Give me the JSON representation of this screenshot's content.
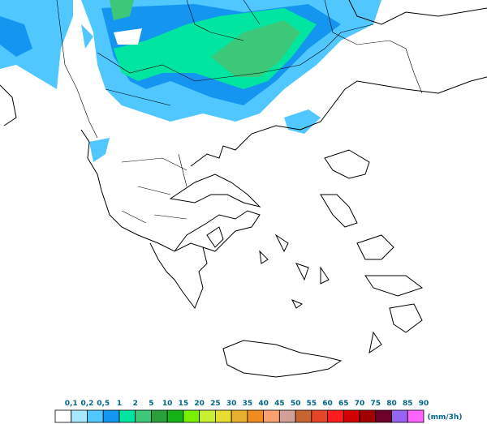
{
  "legend": {
    "items": [
      {
        "label": "0,1",
        "color": "#ffffff"
      },
      {
        "label": "0,2",
        "color": "#a8e8ff"
      },
      {
        "label": "0,5",
        "color": "#50c8ff"
      },
      {
        "label": "1",
        "color": "#1496f0"
      },
      {
        "label": "2",
        "color": "#00e6a0"
      },
      {
        "label": "5",
        "color": "#3cc878"
      },
      {
        "label": "10",
        "color": "#28a03c"
      },
      {
        "label": "15",
        "color": "#14b414"
      },
      {
        "label": "20",
        "color": "#78f000"
      },
      {
        "label": "25",
        "color": "#c8f032"
      },
      {
        "label": "30",
        "color": "#e6dc32"
      },
      {
        "label": "35",
        "color": "#e6af2d"
      },
      {
        "label": "40",
        "color": "#f08c1e"
      },
      {
        "label": "45",
        "color": "#fa9f6e"
      },
      {
        "label": "50",
        "color": "#d2a096"
      },
      {
        "label": "55",
        "color": "#c86432"
      },
      {
        "label": "60",
        "color": "#e64628"
      },
      {
        "label": "65",
        "color": "#ff1e1e"
      },
      {
        "label": "70",
        "color": "#d20000"
      },
      {
        "label": "75",
        "color": "#a00000"
      },
      {
        "label": "80",
        "color": "#6e0028"
      },
      {
        "label": "85",
        "color": "#9664f0"
      },
      {
        "label": "90",
        "color": "#ff64ff"
      }
    ],
    "unit": "(mm/3h)"
  }
}
